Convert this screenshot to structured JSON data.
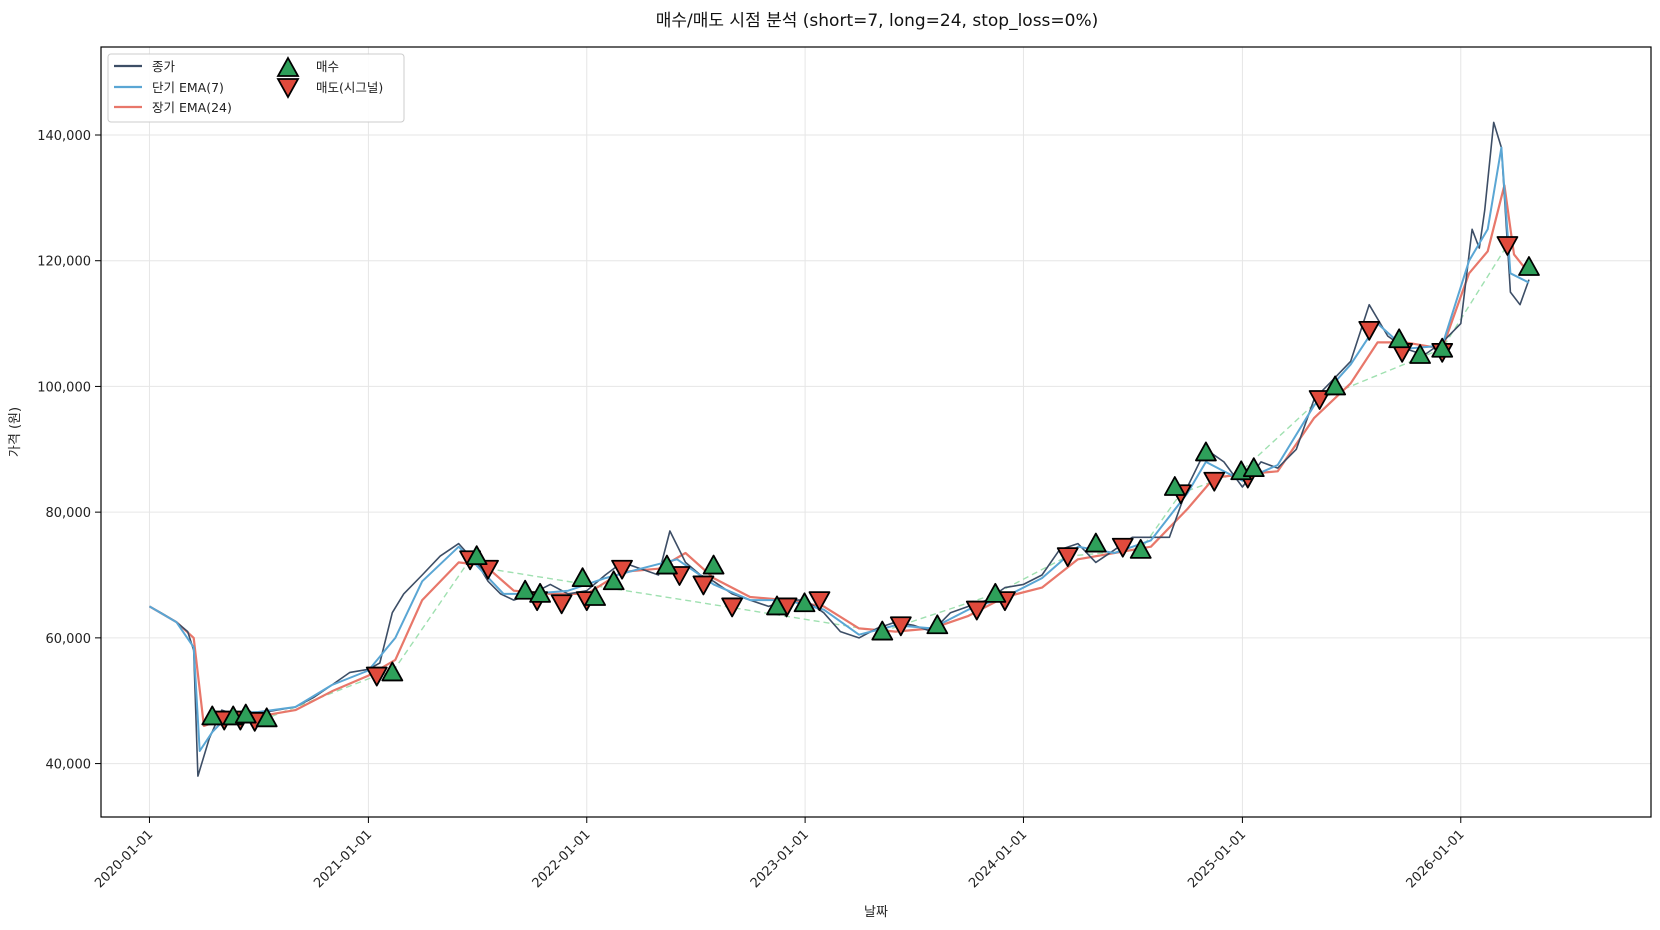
{
  "chart_data": {
    "type": "line",
    "title": "매수/매도 시점 분석 (short=7, long=24, stop_loss=0%)",
    "xlabel": "날짜",
    "ylabel": "가격 (원)",
    "xlim": [
      "2019-10-12",
      "2026-11-15"
    ],
    "ylim": [
      31500,
      154000
    ],
    "x_ticks": [
      "2020-01-01",
      "2021-01-01",
      "2022-01-01",
      "2023-01-01",
      "2024-01-01",
      "2025-01-01",
      "2026-01-01"
    ],
    "y_ticks": [
      40000,
      60000,
      80000,
      100000,
      120000,
      140000
    ],
    "y_tick_labels": [
      "40,000",
      "60,000",
      "80,000",
      "100,000",
      "120,000",
      "140,000"
    ],
    "grid": true,
    "legend_position": "top-left",
    "colors": {
      "close": "#3d4e66",
      "short_ema": "#5aa6d4",
      "long_ema": "#e8776a",
      "buy": "#2ea05a",
      "sell": "#e04a3c",
      "trade_link": "#9fe0b0"
    },
    "series": [
      {
        "name": "종가",
        "x": [
          "2020-01-01",
          "2020-01-20",
          "2020-02-15",
          "2020-03-05",
          "2020-03-15",
          "2020-03-22",
          "2020-04-10",
          "2020-05-01",
          "2020-06-01",
          "2020-07-01",
          "2020-08-01",
          "2020-09-01",
          "2020-10-01",
          "2020-11-01",
          "2020-12-01",
          "2021-01-01",
          "2021-01-20",
          "2021-02-10",
          "2021-03-01",
          "2021-04-01",
          "2021-05-01",
          "2021-06-01",
          "2021-06-15",
          "2021-07-01",
          "2021-07-20",
          "2021-08-10",
          "2021-09-01",
          "2021-10-01",
          "2021-11-01",
          "2021-12-01",
          "2022-01-01",
          "2022-02-01",
          "2022-03-01",
          "2022-04-01",
          "2022-05-01",
          "2022-05-20",
          "2022-06-15",
          "2022-07-10",
          "2022-08-01",
          "2022-09-01",
          "2022-10-01",
          "2022-11-01",
          "2022-12-01",
          "2023-01-01",
          "2023-02-01",
          "2023-03-01",
          "2023-04-01",
          "2023-05-01",
          "2023-06-01",
          "2023-07-01",
          "2023-08-01",
          "2023-09-01",
          "2023-10-01",
          "2023-11-01",
          "2023-12-01",
          "2024-01-01",
          "2024-02-01",
          "2024-03-01",
          "2024-04-01",
          "2024-05-01",
          "2024-06-01",
          "2024-07-01",
          "2024-08-01",
          "2024-09-01",
          "2024-10-01",
          "2024-11-01",
          "2024-12-01",
          "2025-01-01",
          "2025-02-01",
          "2025-03-01",
          "2025-04-01",
          "2025-05-01",
          "2025-06-01",
          "2025-07-01",
          "2025-08-01",
          "2025-09-01",
          "2025-10-01",
          "2025-11-01",
          "2025-12-01",
          "2026-01-01",
          "2026-01-20",
          "2026-02-01",
          "2026-02-10",
          "2026-02-25",
          "2026-03-10",
          "2026-03-25",
          "2026-04-10",
          "2026-04-25"
        ],
        "values": [
          65000,
          64000,
          62500,
          61000,
          58000,
          38000,
          44000,
          48500,
          47500,
          48000,
          48500,
          49000,
          50500,
          52500,
          54500,
          55000,
          56000,
          64000,
          67000,
          70000,
          73000,
          75000,
          73500,
          72000,
          69000,
          67000,
          66000,
          67000,
          68500,
          67000,
          67500,
          70000,
          72000,
          71000,
          70000,
          77000,
          72000,
          70000,
          69000,
          67000,
          66000,
          65000,
          66000,
          66000,
          64000,
          61000,
          60000,
          61500,
          62500,
          62000,
          61000,
          64000,
          65000,
          66000,
          68000,
          68500,
          70000,
          74000,
          75000,
          72000,
          74000,
          76000,
          76000,
          76000,
          84000,
          90000,
          88000,
          84000,
          88000,
          87000,
          90000,
          98000,
          101000,
          104000,
          113000,
          108000,
          106000,
          105000,
          107000,
          110000,
          125000,
          122000,
          128000,
          142000,
          138000,
          115000,
          113000,
          117000
        ]
      },
      {
        "name": "단기 EMA(7)",
        "x": [
          "2020-01-01",
          "2020-02-15",
          "2020-03-15",
          "2020-03-25",
          "2020-04-15",
          "2020-05-15",
          "2020-07-01",
          "2020-09-01",
          "2020-11-01",
          "2021-01-01",
          "2021-02-15",
          "2021-04-01",
          "2021-06-01",
          "2021-07-01",
          "2021-08-15",
          "2021-10-01",
          "2021-12-01",
          "2022-02-01",
          "2022-04-01",
          "2022-06-01",
          "2022-08-01",
          "2022-10-01",
          "2022-12-01",
          "2023-02-01",
          "2023-04-01",
          "2023-06-01",
          "2023-08-01",
          "2023-10-01",
          "2023-12-01",
          "2024-02-01",
          "2024-04-01",
          "2024-06-01",
          "2024-08-01",
          "2024-10-01",
          "2024-11-01",
          "2024-12-01",
          "2025-01-01",
          "2025-03-01",
          "2025-05-01",
          "2025-07-01",
          "2025-08-15",
          "2025-10-01",
          "2025-12-01",
          "2026-01-15",
          "2026-02-15",
          "2026-03-10",
          "2026-03-25",
          "2026-04-25"
        ],
        "values": [
          65000,
          62500,
          58500,
          42000,
          45000,
          48000,
          48200,
          49000,
          52500,
          54800,
          60000,
          69000,
          74500,
          71500,
          67000,
          67000,
          67500,
          69500,
          71000,
          72500,
          68500,
          66000,
          66000,
          64500,
          60500,
          62000,
          61500,
          64500,
          66500,
          69500,
          74500,
          73500,
          75500,
          83000,
          88000,
          86500,
          85000,
          87500,
          97000,
          103500,
          110000,
          106000,
          106500,
          120000,
          125000,
          138000,
          118000,
          116500
        ]
      },
      {
        "name": "장기 EMA(24)",
        "x": [
          "2020-01-01",
          "2020-02-15",
          "2020-03-15",
          "2020-04-01",
          "2020-05-01",
          "2020-07-01",
          "2020-09-01",
          "2020-11-01",
          "2021-01-01",
          "2021-02-15",
          "2021-04-01",
          "2021-06-01",
          "2021-07-15",
          "2021-09-01",
          "2021-11-01",
          "2022-01-01",
          "2022-03-01",
          "2022-05-01",
          "2022-06-15",
          "2022-08-01",
          "2022-10-01",
          "2022-12-01",
          "2023-02-01",
          "2023-04-01",
          "2023-06-01",
          "2023-08-01",
          "2023-10-01",
          "2023-12-01",
          "2024-02-01",
          "2024-04-01",
          "2024-06-01",
          "2024-08-01",
          "2024-10-01",
          "2024-11-15",
          "2025-01-01",
          "2025-03-01",
          "2025-05-01",
          "2025-07-01",
          "2025-08-15",
          "2025-10-01",
          "2025-12-01",
          "2026-01-15",
          "2026-02-15",
          "2026-03-15",
          "2026-03-31",
          "2026-04-25"
        ],
        "values": [
          65000,
          62500,
          60000,
          46000,
          47000,
          47500,
          48500,
          51500,
          54000,
          56500,
          66000,
          72000,
          71500,
          67500,
          67000,
          67000,
          70500,
          71000,
          73500,
          69500,
          66500,
          66000,
          65000,
          61500,
          61000,
          61500,
          63500,
          66500,
          68000,
          72500,
          73500,
          74500,
          80500,
          85500,
          86000,
          86500,
          95000,
          100500,
          107000,
          107000,
          106000,
          118000,
          121500,
          132000,
          121000,
          118000
        ]
      }
    ],
    "buy_points": {
      "name": "매수",
      "x": [
        "2020-04-15",
        "2020-05-20",
        "2020-06-10",
        "2020-07-15",
        "2021-02-10",
        "2021-07-01",
        "2021-09-20",
        "2021-10-15",
        "2021-12-25",
        "2022-01-15",
        "2022-02-15",
        "2022-05-15",
        "2022-08-01",
        "2022-11-15",
        "2022-12-31",
        "2023-05-10",
        "2023-08-10",
        "2023-11-15",
        "2024-05-01",
        "2024-07-15",
        "2024-09-10",
        "2024-11-01",
        "2024-12-30",
        "2025-01-20",
        "2025-06-05",
        "2025-09-20",
        "2025-10-25",
        "2025-12-01",
        "2026-04-25"
      ],
      "values": [
        47500,
        47500,
        47800,
        47200,
        54500,
        73000,
        67500,
        67000,
        69500,
        66500,
        69000,
        71500,
        71500,
        65000,
        65500,
        61000,
        62000,
        67000,
        75000,
        74000,
        84000,
        89500,
        86500,
        87000,
        100000,
        107500,
        105000,
        106000,
        119000
      ]
    },
    "sell_points": {
      "name": "매도(시그널)",
      "x": [
        "2020-05-05",
        "2020-06-01",
        "2020-06-25",
        "2021-01-15",
        "2021-06-20",
        "2021-07-20",
        "2021-10-10",
        "2021-11-20",
        "2022-01-01",
        "2022-03-01",
        "2022-06-05",
        "2022-07-15",
        "2022-09-01",
        "2022-12-01",
        "2023-01-25",
        "2023-06-10",
        "2023-10-15",
        "2023-12-01",
        "2024-03-15",
        "2024-06-15",
        "2024-09-20",
        "2024-11-15",
        "2025-01-10",
        "2025-05-10",
        "2025-08-01",
        "2025-09-25",
        "2025-12-01",
        "2026-03-20"
      ],
      "values": [
        47000,
        47000,
        46800,
        54000,
        72500,
        71000,
        66000,
        65500,
        66000,
        71000,
        70000,
        68500,
        65000,
        65000,
        66000,
        62000,
        64500,
        66000,
        73000,
        74500,
        83000,
        85000,
        85500,
        98000,
        109000,
        105500,
        105500,
        122500
      ]
    },
    "trade_link": {
      "x": [
        "2020-04-15",
        "2020-05-05",
        "2020-07-15",
        "2021-01-15",
        "2021-02-10",
        "2021-06-20",
        "2021-07-01",
        "2021-07-20",
        "2023-05-10",
        "2023-06-10",
        "2023-11-15",
        "2024-03-15",
        "2024-07-15",
        "2024-09-20",
        "2024-12-30",
        "2025-05-10",
        "2025-12-01",
        "2026-03-20"
      ],
      "values": [
        47500,
        47000,
        47200,
        54000,
        54500,
        72500,
        73000,
        71000,
        61000,
        62000,
        67000,
        73000,
        74000,
        83000,
        86500,
        98000,
        106000,
        122500
      ]
    },
    "legend": {
      "close_label": "종가",
      "short_label": "단기 EMA(7)",
      "long_label": "장기 EMA(24)",
      "buy_label": "매수",
      "sell_label": "매도(시그널)"
    }
  }
}
